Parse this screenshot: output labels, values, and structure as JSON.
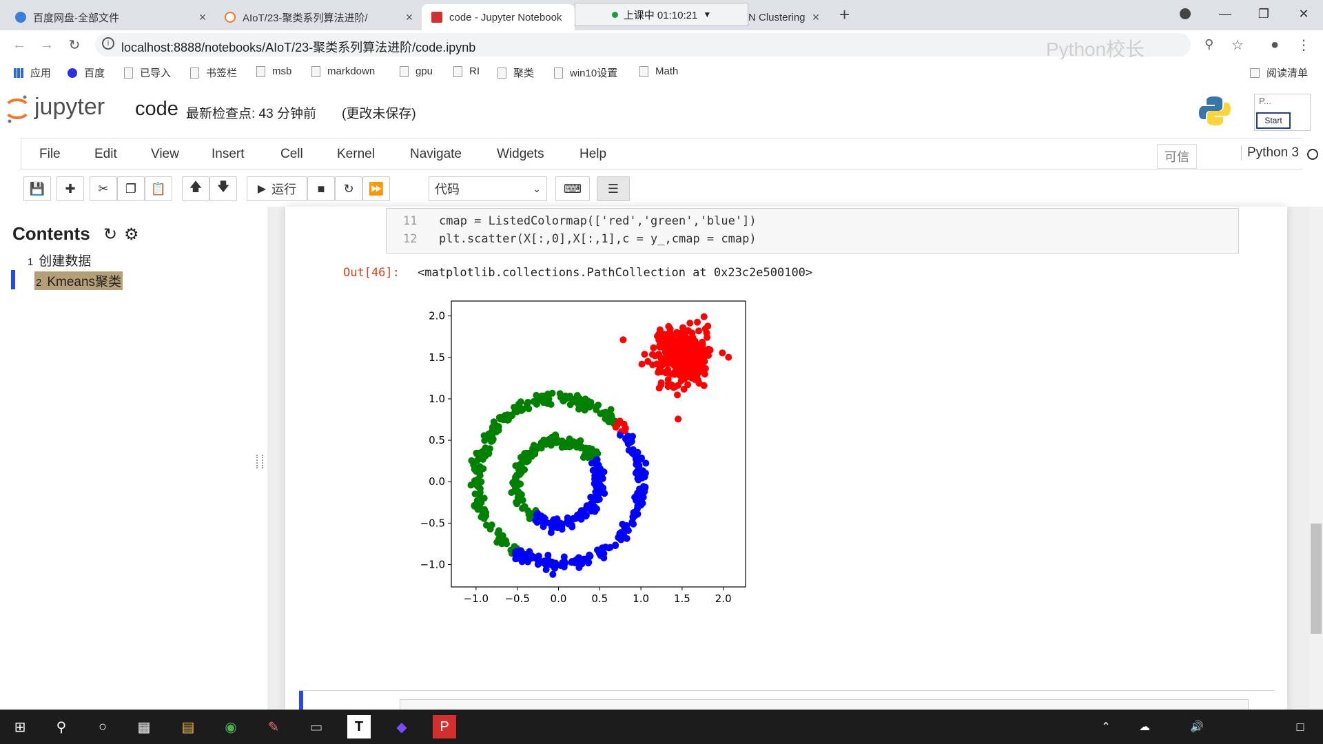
{
  "browser": {
    "tabs": [
      {
        "title": "百度网盘-全部文件",
        "close": "×"
      },
      {
        "title": "AIoT/23-聚类系列算法进阶/",
        "close": "×"
      },
      {
        "title": "code - Jupyter Notebook",
        "close": "×"
      },
      {
        "title": "N Clustering",
        "close": "×"
      }
    ],
    "recording_label": "上课中 01:10:21",
    "new_tab": "+",
    "url": "localhost:8888/notebooks/AIoT/23-聚类系列算法进阶/code.ipynb",
    "watermark": "Python校长",
    "bookmarks": [
      "应用",
      "百度",
      "已导入",
      "书签栏",
      "msb",
      "markdown",
      "gpu",
      "RI",
      "聚类",
      "win10设置",
      "Math"
    ],
    "reading_list": "阅读清单"
  },
  "jupyter": {
    "logo_text": "jupyter",
    "notebook_name": "code",
    "checkpoint": "最新检查点: 43 分钟前",
    "unsaved": "(更改未保存)",
    "popup_text": "P...",
    "popup_button": "Start",
    "menu": [
      "File",
      "Edit",
      "View",
      "Insert",
      "Cell",
      "Kernel",
      "Navigate",
      "Widgets",
      "Help"
    ],
    "trusted": "可信",
    "kernel": "Python 3",
    "toolbar": {
      "run_label": "运行",
      "cell_type": "代码"
    }
  },
  "toc": {
    "title": "Contents",
    "items": [
      {
        "num": "1",
        "label": "创建数据"
      },
      {
        "num": "2",
        "label": "Kmeans聚类"
      }
    ]
  },
  "cell": {
    "lines": [
      {
        "num": "11",
        "code": "cmap = ListedColormap(['red','green','blue'])"
      },
      {
        "num": "12",
        "code": "plt.scatter(X[:,0],X[:,1],c = y_,cmap = cmap)"
      }
    ],
    "out_prompt": "Out[46]:",
    "out_text": "<matplotlib.collections.PathCollection at 0x23c2e500100>"
  },
  "chart_data": {
    "type": "scatter",
    "title": "",
    "xlabel": "",
    "ylabel": "",
    "xlim": [
      -1.3,
      2.27
    ],
    "ylim": [
      -1.27,
      2.18
    ],
    "xticks": [
      "−1.0",
      "−0.5",
      "0.0",
      "0.5",
      "1.0",
      "1.5",
      "2.0"
    ],
    "yticks": [
      "−1.0",
      "−0.5",
      "0.0",
      "0.5",
      "1.0",
      "1.5",
      "2.0"
    ],
    "colors": [
      "#ff0000",
      "#008000",
      "#0000ff"
    ],
    "series": [
      {
        "color": "#ff0000",
        "shape": "blob",
        "center": [
          1.5,
          1.5
        ],
        "spread": 0.17,
        "count": 300
      },
      {
        "color": "#008000",
        "shape": "ring",
        "radius": 1.0,
        "angle_range_deg": [
          45,
          238
        ],
        "count": 230
      },
      {
        "color": "#ff0000",
        "shape": "ring",
        "radius": 1.0,
        "angle_range_deg": [
          37,
          45
        ],
        "count": 10
      },
      {
        "color": "#0000ff",
        "shape": "ring",
        "radius": 1.0,
        "angle_range_deg": [
          238,
          397
        ],
        "count": 200
      },
      {
        "color": "#008000",
        "shape": "ring",
        "radius": 0.5,
        "angle_range_deg": [
          30,
          235
        ],
        "count": 170
      },
      {
        "color": "#0000ff",
        "shape": "ring",
        "radius": 0.5,
        "angle_range_deg": [
          235,
          390
        ],
        "count": 130
      }
    ]
  },
  "taskbar": {
    "icons": [
      "start-icon",
      "search-icon",
      "cortana-icon",
      "taskview-icon",
      "explorer-icon",
      "chrome-icon",
      "paint-icon",
      "terminal-icon",
      "typora-icon",
      "vscode-icon",
      "pdf-icon"
    ]
  }
}
